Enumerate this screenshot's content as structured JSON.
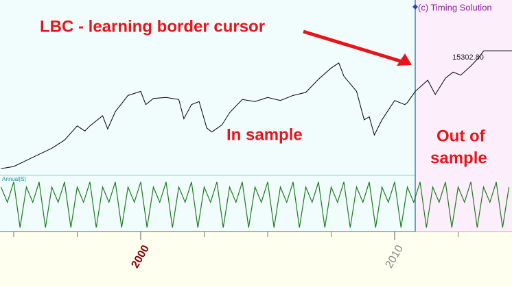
{
  "chart_data": {
    "type": "line",
    "brand": "(c) Timing Solution",
    "annotations": {
      "lbc": "LBC - learning border cursor",
      "in_sample": "In sample",
      "out_sample_1": "Out of",
      "out_sample_2": "sample"
    },
    "xlim": [
      1994.46,
      2014.62
    ],
    "xticks": [
      2000,
      2010
    ],
    "minor_xticks": [
      1995,
      1997.5,
      2002.5,
      2005,
      2007.5,
      2012.5
    ],
    "learning_border": 2010.81,
    "ylim": [
      3300,
      20300
    ],
    "series": [
      {
        "name": null,
        "color": "#000000",
        "x": [
          1994.5,
          1995,
          1995.5,
          1996,
          1996.5,
          1997,
          1997.5,
          1997.8,
          1998,
          1998.5,
          1998.7,
          1999,
          1999.5,
          2000,
          2000.2,
          2000.5,
          2001,
          2001.5,
          2001.7,
          2002,
          2002.3,
          2002.6,
          2002.8,
          2003.2,
          2003.5,
          2004,
          2004.5,
          2005,
          2005.5,
          2006,
          2006.5,
          2007,
          2007.5,
          2007.8,
          2008,
          2008.5,
          2008.8,
          2009,
          2009.2,
          2009.5,
          2010,
          2010.4,
          2010.5,
          2010.81,
          2011.3,
          2011.6,
          2012,
          2012.3,
          2012.6,
          2013,
          2013.3,
          2013.51
        ],
        "values": [
          3700,
          3900,
          4500,
          5100,
          5700,
          6500,
          7900,
          7400,
          7900,
          8900,
          7600,
          9300,
          10900,
          11300,
          10000,
          10600,
          10700,
          10500,
          8600,
          10000,
          10300,
          7700,
          7300,
          8000,
          9200,
          10500,
          10300,
          10700,
          10400,
          10900,
          11200,
          12500,
          13600,
          14100,
          12800,
          11300,
          8500,
          8800,
          7000,
          8500,
          10400,
          10000,
          10200,
          11300,
          12400,
          11000,
          12600,
          13200,
          12900,
          13800,
          14600,
          15302.8
        ],
        "last_value_label": "15302.80"
      }
    ],
    "oscillator": {
      "label": "Annual[S]",
      "color": "#1a7a1a",
      "ylim": [
        0,
        1
      ],
      "x": [
        1994.5,
        1994.75,
        1995,
        1995.25,
        1995.5,
        1995.75,
        1996,
        1996.25,
        1996.5,
        1996.75,
        1997,
        1997.25,
        1997.5,
        1997.75,
        1998,
        1998.25,
        1998.5,
        1998.75,
        1999,
        1999.25,
        1999.5,
        1999.75,
        2000,
        2000.25,
        2000.5,
        2000.75,
        2001,
        2001.25,
        2001.5,
        2001.75,
        2002,
        2002.25,
        2002.5,
        2002.75,
        2003,
        2003.25,
        2003.5,
        2003.75,
        2004,
        2004.25,
        2004.5,
        2004.75,
        2005,
        2005.25,
        2005.5,
        2005.75,
        2006,
        2006.25,
        2006.5,
        2006.75,
        2007,
        2007.25,
        2007.5,
        2007.75,
        2008,
        2008.25,
        2008.5,
        2008.75,
        2009,
        2009.25,
        2009.5,
        2009.75,
        2010,
        2010.25,
        2010.5,
        2010.75,
        2011,
        2011.25,
        2011.5,
        2011.75,
        2012,
        2012.25,
        2012.5,
        2012.75,
        2013,
        2013.25,
        2013.5,
        2013.75,
        2014,
        2014.25,
        2014.5
      ],
      "values": [
        0.85,
        0.55,
        0.95,
        0.05,
        0.85,
        0.55,
        0.95,
        0.05,
        0.85,
        0.55,
        0.95,
        0.05,
        0.85,
        0.55,
        0.95,
        0.05,
        0.85,
        0.55,
        0.95,
        0.05,
        0.85,
        0.55,
        0.95,
        0.05,
        0.85,
        0.55,
        0.95,
        0.05,
        0.85,
        0.55,
        0.95,
        0.05,
        0.85,
        0.55,
        0.95,
        0.05,
        0.85,
        0.55,
        0.95,
        0.05,
        0.85,
        0.55,
        0.95,
        0.05,
        0.85,
        0.55,
        0.95,
        0.05,
        0.85,
        0.55,
        0.95,
        0.05,
        0.85,
        0.55,
        0.95,
        0.05,
        0.85,
        0.55,
        0.95,
        0.05,
        0.85,
        0.55,
        0.95,
        0.05,
        0.85,
        0.55,
        0.95,
        0.05,
        0.85,
        0.55,
        0.95,
        0.05,
        0.85,
        0.55,
        0.95,
        0.05,
        0.85,
        0.55,
        0.95,
        0.05,
        0.85
      ]
    }
  }
}
